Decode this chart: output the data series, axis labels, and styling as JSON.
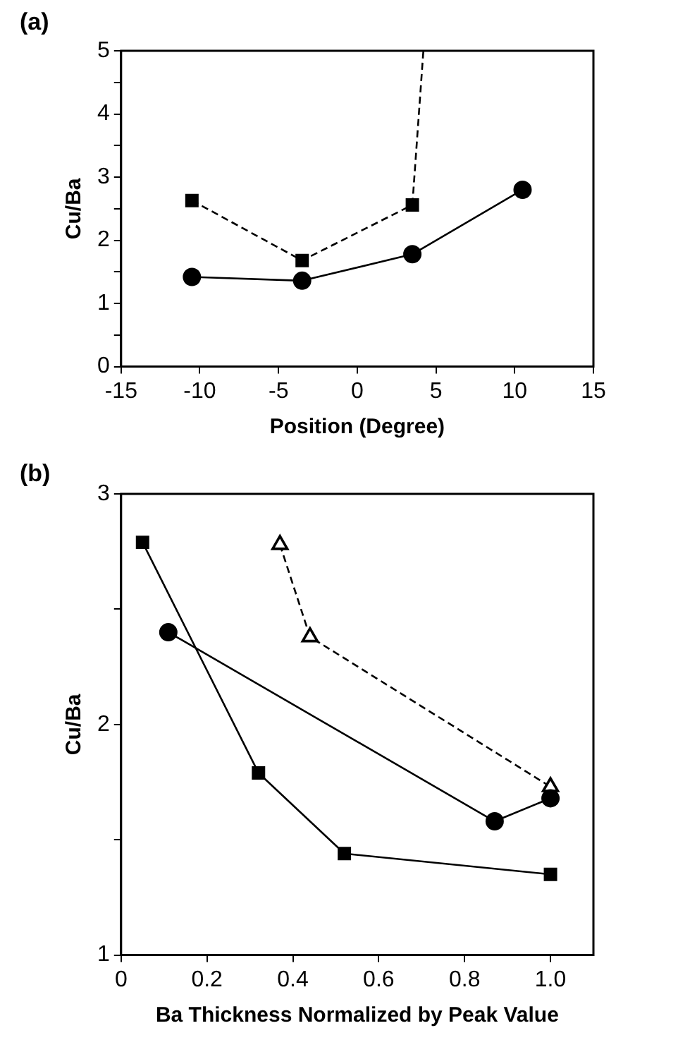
{
  "chart_data": [
    {
      "type": "line",
      "title": "(a)",
      "xlabel": "Position (Degree)",
      "ylabel": "Cu/Ba",
      "xlim": [
        -15,
        15
      ],
      "xticks": [
        -15,
        -10,
        -5,
        0,
        5,
        10,
        15
      ],
      "ylim": [
        0,
        5
      ],
      "yticks": [
        0,
        {
          "value": 0.5,
          "label": null
        },
        1,
        {
          "value": 1.5,
          "label": null
        },
        2,
        {
          "value": 2.5,
          "label": null
        },
        3,
        {
          "value": 3.5,
          "label": null
        },
        4,
        {
          "value": 4.5,
          "label": null
        },
        5
      ],
      "grid": false,
      "legend": false,
      "series": [
        {
          "color": "#000000",
          "x": [
            -10.5,
            -3.5,
            3.5
          ],
          "values": [
            2.63,
            1.68,
            2.56
          ],
          "marker": "square",
          "line_style": "dashed"
        },
        {
          "color": "#000000",
          "x": [
            3.5,
            4.2
          ],
          "values": [
            2.56,
            5
          ],
          "marker": "none",
          "line_style": "dashed"
        },
        {
          "color": "#000000",
          "x": [
            -10.5,
            -3.5,
            3.5,
            10.5
          ],
          "values": [
            1.42,
            1.36,
            1.78,
            2.8
          ],
          "marker": "circle",
          "line_style": "solid"
        }
      ]
    },
    {
      "type": "line",
      "title": "(b)",
      "xlabel": "Ba Thickness Normalized by Peak Value",
      "ylabel": "Cu/Ba",
      "xlim": [
        0,
        1.1
      ],
      "xticks": [
        0,
        0.2,
        0.4,
        0.6,
        0.8,
        {
          "value": 1,
          "label": "1.0"
        }
      ],
      "ylim": [
        1,
        3
      ],
      "yticks": [
        1,
        {
          "value": 1.5,
          "label": null
        },
        2,
        {
          "value": 2.5,
          "label": null
        },
        3
      ],
      "grid": false,
      "legend": false,
      "series": [
        {
          "color": "#000000",
          "x": [
            0.05,
            0.32,
            0.52,
            1.0
          ],
          "values": [
            2.79,
            1.79,
            1.44,
            1.35
          ],
          "marker": "square",
          "line_style": "solid"
        },
        {
          "color": "#000000",
          "x": [
            0.11,
            0.87,
            1.0
          ],
          "values": [
            2.4,
            1.58,
            1.68
          ],
          "marker": "circle",
          "line_style": "solid"
        },
        {
          "color": "#000000",
          "x": [
            0.37,
            0.44,
            1.0
          ],
          "values": [
            2.78,
            2.38,
            1.73
          ],
          "marker": "triangle",
          "line_style": "dashed"
        }
      ]
    }
  ]
}
